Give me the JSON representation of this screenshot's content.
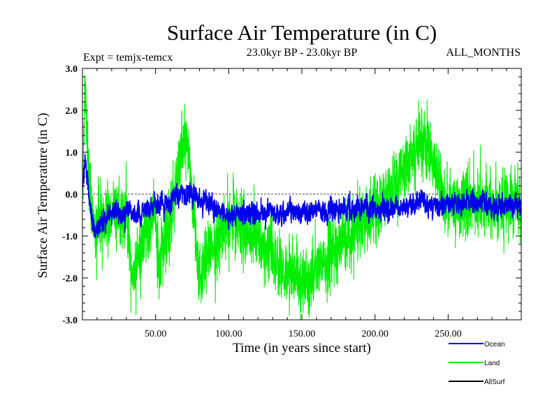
{
  "chart_data": {
    "type": "line",
    "title": "Surface Air Temperature (in C)",
    "subtitle_left": "Expt = temjx-temcx",
    "subtitle_center": "23.0kyr BP - 23.0kyr BP",
    "subtitle_right": "ALL_MONTHS",
    "xlabel": "Time (in years since start)",
    "ylabel": "Surface Air Temperature (in C)",
    "xlim": [
      0,
      300
    ],
    "ylim": [
      -3.0,
      3.0
    ],
    "x_ticks": [
      50,
      100,
      150,
      200,
      250
    ],
    "x_tick_labels": [
      "50.00",
      "100.00",
      "150.00",
      "200.00",
      "250.00"
    ],
    "y_ticks": [
      -3,
      -2,
      -1,
      0,
      1,
      2,
      3
    ],
    "y_tick_labels": [
      "-3.0",
      "-2.0",
      "-1.0",
      "0.0",
      "1.0",
      "2.0",
      "3.0"
    ],
    "zero_reference_line": 0.0,
    "samples_per_year": 12,
    "series": [
      {
        "name": "Land",
        "color": "#00ee00",
        "key_points": [
          [
            0.5,
            0.4
          ],
          [
            1.5,
            2.7
          ],
          [
            2.5,
            1.9
          ],
          [
            4.5,
            0.2
          ],
          [
            8,
            -0.8
          ],
          [
            12,
            -0.6
          ],
          [
            30,
            -0.5
          ],
          [
            33,
            -2.0
          ],
          [
            50,
            -0.4
          ],
          [
            52,
            -1.8
          ],
          [
            71,
            1.45
          ],
          [
            80,
            -2.0
          ],
          [
            100,
            -0.5
          ],
          [
            150,
            -2.15
          ],
          [
            200,
            -0.4
          ],
          [
            235,
            1.3
          ],
          [
            250,
            -0.3
          ],
          [
            300,
            -0.2
          ]
        ],
        "typical_range": [
          -1.5,
          0.6
        ]
      },
      {
        "name": "Ocean",
        "color": "#0000ee",
        "key_points": [
          [
            0.5,
            0.3
          ],
          [
            2,
            0.9
          ],
          [
            4,
            0.0
          ],
          [
            8,
            -0.9
          ],
          [
            15,
            -0.5
          ],
          [
            40,
            -0.45
          ],
          [
            71,
            0.05
          ],
          [
            100,
            -0.5
          ],
          [
            150,
            -0.4
          ],
          [
            200,
            -0.35
          ],
          [
            250,
            -0.2
          ],
          [
            300,
            -0.3
          ]
        ],
        "typical_range": [
          -0.9,
          0.2
        ]
      },
      {
        "name": "AllSurf",
        "color": "#000000",
        "key_points": [],
        "typical_range": []
      }
    ]
  }
}
